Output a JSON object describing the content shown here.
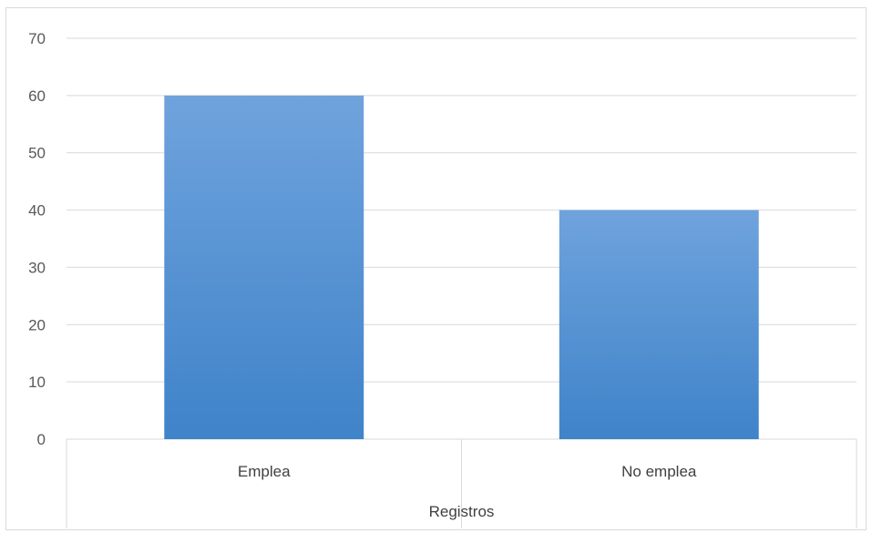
{
  "chart_data": {
    "type": "bar",
    "categories": [
      "Emplea",
      "No emplea"
    ],
    "values": [
      60,
      40
    ],
    "xlabel": "Registros",
    "ylabel": "",
    "ylim": [
      0,
      70
    ],
    "yticks": [
      0,
      10,
      20,
      30,
      40,
      50,
      60,
      70
    ],
    "grid": true,
    "legend": "none",
    "colors": {
      "bar_top": "#6fa3dd",
      "bar_bottom": "#3f83c9",
      "gridline": "#d9d9d9",
      "axis_text": "#595959"
    }
  }
}
